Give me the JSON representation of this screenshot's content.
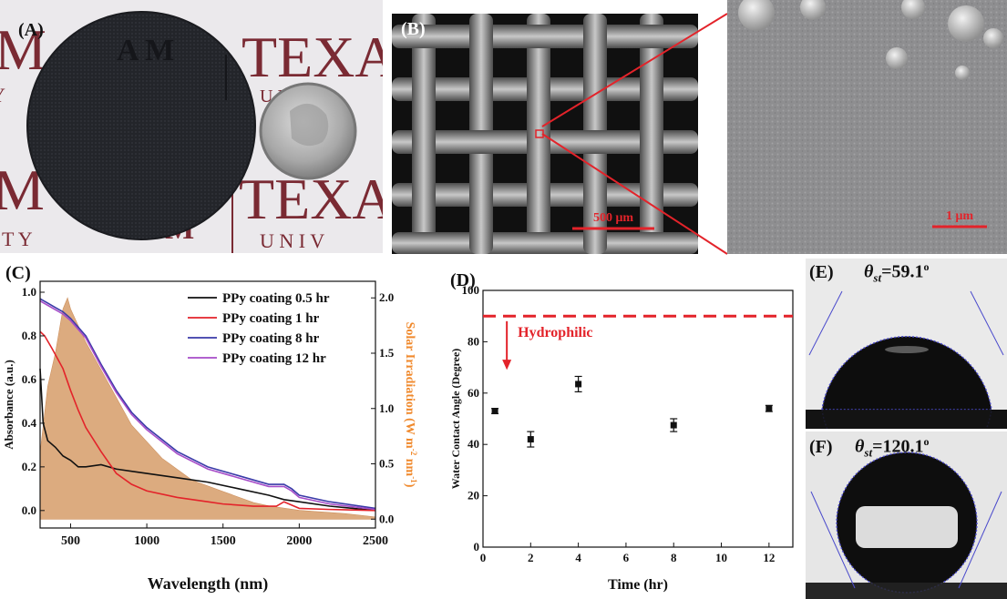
{
  "panels": {
    "a": {
      "label": "(A)",
      "logo_top": "A M",
      "logo_bottom": "A M",
      "texas_top": "TEXA",
      "univ_top": "U N I V E",
      "texas_bottom": "TEXA",
      "univ_bottom": "U N I V",
      "left_fragment_top": "M",
      "left_fragment_bottom": "M",
      "left_y": "Y",
      "left_ty": "T Y"
    },
    "b": {
      "label": "(B)",
      "scale_bar": "500 μm"
    },
    "b_zoom": {
      "scale_bar": "1 μm"
    },
    "c": {
      "label": "(C)"
    },
    "d": {
      "label": "(D)",
      "annotation": "Hydrophilic"
    },
    "e": {
      "label": "(E)",
      "angle_symbol": "θ",
      "angle_sub": "st",
      "angle_value": "=59.1",
      "angle_unit": "o"
    },
    "f": {
      "label": "(F)",
      "angle_symbol": "θ",
      "angle_sub": "st",
      "angle_value": "=120.1",
      "angle_unit": "o"
    }
  },
  "colors": {
    "red": "#e3232a",
    "orange": "#f0892c",
    "black": "#111111",
    "blue": "#3a3aa8",
    "purple": "#a64cc8",
    "solar_fill": "#d9a272"
  },
  "chart_data": [
    {
      "id": "C",
      "type": "line",
      "xlabel": "Wavelength (nm)",
      "ylabel": "Absorbance (a.u.)",
      "ylabel_right": "Solar Irradiation (W m-2 nm-1)",
      "ylabel_right_parts": [
        "Solar Irradiation (W m",
        "-2",
        " nm",
        "-1",
        ")"
      ],
      "xlim": [
        300,
        2500
      ],
      "ylim": [
        -0.08,
        1.05
      ],
      "ylim_right": [
        -0.08,
        2.15
      ],
      "x_ticks": [
        "500",
        "1000",
        "1500",
        "2000",
        "2500"
      ],
      "x_tick_values": [
        500,
        1000,
        1500,
        2000,
        2500
      ],
      "y_ticks": [
        "0.0",
        "0.2",
        "0.4",
        "0.6",
        "0.8",
        "1.0"
      ],
      "y_tick_values": [
        0,
        0.2,
        0.4,
        0.6,
        0.8,
        1.0
      ],
      "y_right_ticks": [
        "0.0",
        "0.5",
        "1.0",
        "1.5",
        "2.0"
      ],
      "y_right_tick_values": [
        0,
        0.5,
        1.0,
        1.5,
        2.0
      ],
      "legend_position": "top-right",
      "series": [
        {
          "name": "PPy coating  0.5 hr",
          "color": "#111111",
          "x": [
            300,
            320,
            350,
            400,
            450,
            500,
            550,
            600,
            700,
            800,
            900,
            1000,
            1200,
            1400,
            1600,
            1800,
            1900,
            2000,
            2200,
            2500
          ],
          "y": [
            0.65,
            0.4,
            0.32,
            0.29,
            0.25,
            0.23,
            0.2,
            0.2,
            0.21,
            0.19,
            0.18,
            0.17,
            0.15,
            0.13,
            0.1,
            0.07,
            0.05,
            0.04,
            0.02,
            0.0
          ]
        },
        {
          "name": "PPy coating  1 hr",
          "color": "#e3232a",
          "x": [
            300,
            330,
            380,
            450,
            500,
            550,
            600,
            700,
            800,
            900,
            1000,
            1200,
            1400,
            1500,
            1700,
            1850,
            1900,
            2000,
            2200,
            2500
          ],
          "y": [
            0.82,
            0.8,
            0.74,
            0.65,
            0.55,
            0.46,
            0.38,
            0.27,
            0.17,
            0.12,
            0.09,
            0.06,
            0.04,
            0.03,
            0.02,
            0.02,
            0.04,
            0.01,
            0.005,
            0.0
          ]
        },
        {
          "name": "PPy coating  8 hr",
          "color": "#3a3aa8",
          "x": [
            300,
            350,
            400,
            450,
            500,
            600,
            700,
            800,
            900,
            1000,
            1200,
            1400,
            1600,
            1800,
            1900,
            1950,
            2000,
            2200,
            2500
          ],
          "y": [
            0.97,
            0.95,
            0.93,
            0.91,
            0.88,
            0.8,
            0.67,
            0.55,
            0.45,
            0.38,
            0.27,
            0.2,
            0.16,
            0.12,
            0.12,
            0.1,
            0.07,
            0.04,
            0.01
          ]
        },
        {
          "name": "PPy coating  12 hr",
          "color": "#a64cc8",
          "x": [
            300,
            350,
            400,
            450,
            500,
            600,
            700,
            800,
            900,
            1000,
            1200,
            1400,
            1600,
            1800,
            1900,
            1950,
            2000,
            2200,
            2500
          ],
          "y": [
            0.96,
            0.94,
            0.92,
            0.9,
            0.87,
            0.79,
            0.66,
            0.54,
            0.44,
            0.37,
            0.26,
            0.19,
            0.15,
            0.11,
            0.11,
            0.09,
            0.06,
            0.03,
            0.005
          ]
        },
        {
          "name": "",
          "color": "#d9a272",
          "fill": true,
          "axis": "right",
          "x": [
            300,
            350,
            400,
            450,
            480,
            500,
            550,
            600,
            700,
            800,
            900,
            1000,
            1100,
            1200,
            1300,
            1400,
            1500,
            1600,
            1700,
            1800,
            1900,
            2000,
            2100,
            2200,
            2300,
            2500
          ],
          "y": [
            0.6,
            1.2,
            1.5,
            1.9,
            2.0,
            1.9,
            1.75,
            1.6,
            1.35,
            1.1,
            0.85,
            0.7,
            0.55,
            0.45,
            0.35,
            0.3,
            0.25,
            0.2,
            0.15,
            0.12,
            0.1,
            0.08,
            0.07,
            0.06,
            0.05,
            0.02
          ]
        }
      ]
    },
    {
      "id": "D",
      "type": "scatter",
      "xlabel": "Time (hr)",
      "ylabel": "Water Contact Angle (Degree)",
      "xlim": [
        0,
        13
      ],
      "ylim": [
        0,
        100
      ],
      "x_ticks": [
        "0",
        "2",
        "4",
        "6",
        "8",
        "10",
        "12"
      ],
      "x_tick_values": [
        0,
        2,
        4,
        6,
        8,
        10,
        12
      ],
      "y_ticks": [
        "0",
        "20",
        "40",
        "60",
        "80",
        "100"
      ],
      "y_tick_values": [
        0,
        20,
        40,
        60,
        80,
        100
      ],
      "reference_line_y": 90,
      "series": [
        {
          "name": "",
          "x": [
            0.5,
            2,
            4,
            8,
            12
          ],
          "y": [
            53,
            42,
            63.5,
            47.5,
            54
          ],
          "err": [
            1.0,
            3.0,
            3.0,
            2.5,
            1.2
          ]
        }
      ]
    }
  ]
}
